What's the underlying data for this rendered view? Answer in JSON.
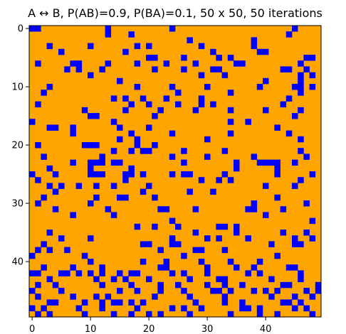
{
  "chart_data": {
    "type": "heatmap",
    "title": "A ↔ B, P(AB)=0.9, P(BA)=0.1, 50 x 50, 50 iterations",
    "xlabel": "",
    "ylabel": "",
    "grid_size": [
      50,
      50
    ],
    "xlim": [
      -0.5,
      49.5
    ],
    "ylim": [
      49.5,
      -0.5
    ],
    "x_ticks": [
      0,
      10,
      20,
      30,
      40
    ],
    "y_ticks": [
      0,
      10,
      20,
      30,
      40
    ],
    "grid": false,
    "legend": "none",
    "colors": {
      "A": "#ffa500",
      "B": "#0000ff"
    },
    "background_state": "A",
    "b_cells": [
      [
        0,
        0
      ],
      [
        0,
        1
      ],
      [
        0,
        13
      ],
      [
        0,
        24
      ],
      [
        0,
        45
      ],
      [
        1,
        13
      ],
      [
        1,
        17
      ],
      [
        1,
        44
      ],
      [
        2,
        27
      ],
      [
        2,
        38
      ],
      [
        3,
        3
      ],
      [
        3,
        10
      ],
      [
        3,
        18
      ],
      [
        3,
        20
      ],
      [
        3,
        29
      ],
      [
        3,
        38
      ],
      [
        4,
        5
      ],
      [
        4,
        16
      ],
      [
        4,
        31
      ],
      [
        4,
        39
      ],
      [
        4,
        40
      ],
      [
        5,
        20
      ],
      [
        5,
        21
      ],
      [
        5,
        26
      ],
      [
        5,
        32
      ],
      [
        5,
        34
      ],
      [
        5,
        47
      ],
      [
        5,
        48
      ],
      [
        6,
        1
      ],
      [
        6,
        7
      ],
      [
        6,
        8
      ],
      [
        6,
        13
      ],
      [
        6,
        18
      ],
      [
        6,
        23
      ],
      [
        6,
        28
      ],
      [
        6,
        35
      ],
      [
        6,
        36
      ],
      [
        6,
        46
      ],
      [
        7,
        6
      ],
      [
        7,
        8
      ],
      [
        7,
        12
      ],
      [
        7,
        21
      ],
      [
        7,
        26
      ],
      [
        7,
        31
      ],
      [
        7,
        32
      ],
      [
        7,
        43
      ],
      [
        7,
        44
      ],
      [
        7,
        47
      ],
      [
        8,
        10
      ],
      [
        8,
        29
      ],
      [
        8,
        33
      ],
      [
        8,
        46
      ],
      [
        8,
        48
      ],
      [
        9,
        15
      ],
      [
        9,
        40
      ],
      [
        9,
        46
      ],
      [
        10,
        3
      ],
      [
        10,
        18
      ],
      [
        10,
        24
      ],
      [
        10,
        30
      ],
      [
        10,
        39
      ],
      [
        10,
        45
      ],
      [
        10,
        46
      ],
      [
        10,
        48
      ],
      [
        11,
        2
      ],
      [
        11,
        25
      ],
      [
        11,
        34
      ],
      [
        11,
        46
      ],
      [
        12,
        14
      ],
      [
        12,
        16
      ],
      [
        12,
        19
      ],
      [
        12,
        23
      ],
      [
        12,
        29
      ],
      [
        12,
        44
      ],
      [
        13,
        1
      ],
      [
        13,
        17
      ],
      [
        13,
        20
      ],
      [
        13,
        25
      ],
      [
        13,
        29
      ],
      [
        13,
        31
      ],
      [
        13,
        43
      ],
      [
        14,
        9
      ],
      [
        14,
        16
      ],
      [
        14,
        22
      ],
      [
        14,
        28
      ],
      [
        14,
        34
      ],
      [
        14,
        40
      ],
      [
        14,
        46
      ],
      [
        15,
        10
      ],
      [
        15,
        11
      ],
      [
        15,
        21
      ],
      [
        15,
        45
      ],
      [
        16,
        0
      ],
      [
        16,
        14
      ],
      [
        16,
        34
      ],
      [
        16,
        37
      ],
      [
        17,
        3
      ],
      [
        17,
        4
      ],
      [
        17,
        7
      ],
      [
        17,
        15
      ],
      [
        17,
        20
      ],
      [
        17,
        42
      ],
      [
        18,
        7
      ],
      [
        18,
        17
      ],
      [
        18,
        24
      ],
      [
        18,
        34
      ],
      [
        18,
        44
      ],
      [
        19,
        15
      ],
      [
        19,
        18
      ],
      [
        19,
        30
      ],
      [
        19,
        46
      ],
      [
        20,
        1
      ],
      [
        20,
        9
      ],
      [
        20,
        10
      ],
      [
        20,
        11
      ],
      [
        20,
        18
      ],
      [
        20,
        21
      ],
      [
        21,
        14
      ],
      [
        21,
        17
      ],
      [
        21,
        19
      ],
      [
        21,
        20
      ],
      [
        21,
        26
      ],
      [
        21,
        33
      ],
      [
        21,
        46
      ],
      [
        22,
        2
      ],
      [
        22,
        12
      ],
      [
        22,
        24
      ],
      [
        22,
        30
      ],
      [
        22,
        38
      ],
      [
        22,
        47
      ],
      [
        23,
        7
      ],
      [
        23,
        10
      ],
      [
        23,
        11
      ],
      [
        23,
        12
      ],
      [
        23,
        14
      ],
      [
        23,
        15
      ],
      [
        23,
        26
      ],
      [
        23,
        35
      ],
      [
        23,
        39
      ],
      [
        23,
        40
      ],
      [
        23,
        41
      ],
      [
        23,
        42
      ],
      [
        23,
        45
      ],
      [
        24,
        3
      ],
      [
        24,
        10
      ],
      [
        24,
        17
      ],
      [
        24,
        35
      ],
      [
        24,
        42
      ],
      [
        25,
        0
      ],
      [
        25,
        4
      ],
      [
        25,
        10
      ],
      [
        25,
        11
      ],
      [
        25,
        12
      ],
      [
        25,
        16
      ],
      [
        25,
        17
      ],
      [
        25,
        19
      ],
      [
        25,
        24
      ],
      [
        25,
        26
      ],
      [
        25,
        27
      ],
      [
        25,
        33
      ],
      [
        25,
        42
      ],
      [
        25,
        48
      ],
      [
        26,
        1
      ],
      [
        26,
        16
      ],
      [
        26,
        29
      ],
      [
        26,
        32
      ],
      [
        26,
        34
      ],
      [
        26,
        46
      ],
      [
        27,
        3
      ],
      [
        27,
        5
      ],
      [
        27,
        8
      ],
      [
        27,
        11
      ],
      [
        27,
        14
      ],
      [
        27,
        20
      ],
      [
        27,
        40
      ],
      [
        27,
        45
      ],
      [
        28,
        4
      ],
      [
        28,
        19
      ],
      [
        28,
        27
      ],
      [
        28,
        31
      ],
      [
        29,
        2
      ],
      [
        29,
        11
      ],
      [
        29,
        15
      ],
      [
        29,
        16
      ],
      [
        29,
        21
      ],
      [
        29,
        42
      ],
      [
        30,
        1
      ],
      [
        30,
        10
      ],
      [
        30,
        38
      ],
      [
        30,
        47
      ],
      [
        31,
        4
      ],
      [
        31,
        13
      ],
      [
        31,
        22
      ],
      [
        31,
        23
      ],
      [
        31,
        28
      ],
      [
        31,
        37
      ],
      [
        31,
        38
      ],
      [
        31,
        43
      ],
      [
        32,
        7
      ],
      [
        32,
        14
      ],
      [
        32,
        40
      ],
      [
        33,
        24
      ],
      [
        33,
        48
      ],
      [
        34,
        18
      ],
      [
        34,
        21
      ],
      [
        34,
        25
      ],
      [
        34,
        32
      ],
      [
        34,
        33
      ],
      [
        34,
        35
      ],
      [
        35,
        3
      ],
      [
        35,
        28
      ],
      [
        35,
        35
      ],
      [
        35,
        43
      ],
      [
        35,
        47
      ],
      [
        36,
        5
      ],
      [
        36,
        10
      ],
      [
        36,
        24
      ],
      [
        36,
        30
      ],
      [
        36,
        32
      ],
      [
        36,
        37
      ],
      [
        36,
        45
      ],
      [
        36,
        48
      ],
      [
        37,
        2
      ],
      [
        37,
        19
      ],
      [
        37,
        20
      ],
      [
        37,
        24
      ],
      [
        37,
        25
      ],
      [
        37,
        41
      ],
      [
        37,
        45
      ],
      [
        37,
        46
      ],
      [
        38,
        1
      ],
      [
        38,
        3
      ],
      [
        38,
        6
      ],
      [
        38,
        22
      ],
      [
        38,
        28
      ],
      [
        38,
        29
      ],
      [
        38,
        33
      ],
      [
        39,
        0
      ],
      [
        39,
        9
      ],
      [
        39,
        26
      ],
      [
        39,
        42
      ],
      [
        40,
        10
      ],
      [
        40,
        19
      ],
      [
        40,
        23
      ],
      [
        40,
        29
      ],
      [
        40,
        34
      ],
      [
        40,
        39
      ],
      [
        41,
        2
      ],
      [
        41,
        7
      ],
      [
        41,
        12
      ],
      [
        41,
        22
      ],
      [
        41,
        23
      ],
      [
        41,
        30
      ],
      [
        41,
        35
      ],
      [
        41,
        38
      ],
      [
        41,
        44
      ],
      [
        41,
        45
      ],
      [
        42,
        0
      ],
      [
        42,
        1
      ],
      [
        42,
        5
      ],
      [
        42,
        6
      ],
      [
        42,
        8
      ],
      [
        42,
        10
      ],
      [
        42,
        12
      ],
      [
        42,
        15
      ],
      [
        42,
        17
      ],
      [
        42,
        18
      ],
      [
        42,
        24
      ],
      [
        42,
        26
      ],
      [
        42,
        30
      ],
      [
        42,
        37
      ],
      [
        42,
        39
      ],
      [
        42,
        46
      ],
      [
        43,
        3
      ],
      [
        43,
        11
      ],
      [
        43,
        14
      ],
      [
        43,
        16
      ],
      [
        43,
        20
      ],
      [
        43,
        27
      ],
      [
        43,
        32
      ],
      [
        43,
        33
      ],
      [
        43,
        41
      ],
      [
        43,
        46
      ],
      [
        44,
        1
      ],
      [
        44,
        4
      ],
      [
        44,
        12
      ],
      [
        44,
        17
      ],
      [
        44,
        22
      ],
      [
        44,
        25
      ],
      [
        44,
        30
      ],
      [
        44,
        33
      ],
      [
        44,
        36
      ],
      [
        44,
        43
      ],
      [
        44,
        44
      ],
      [
        44,
        49
      ],
      [
        45,
        0
      ],
      [
        45,
        5
      ],
      [
        45,
        15
      ],
      [
        45,
        18
      ],
      [
        45,
        22
      ],
      [
        45,
        26
      ],
      [
        45,
        31
      ],
      [
        45,
        32
      ],
      [
        45,
        34
      ],
      [
        45,
        38
      ],
      [
        45,
        40
      ],
      [
        45,
        42
      ],
      [
        45,
        47
      ],
      [
        45,
        49
      ],
      [
        46,
        1
      ],
      [
        46,
        7
      ],
      [
        46,
        11
      ],
      [
        46,
        13
      ],
      [
        46,
        21
      ],
      [
        46,
        27
      ],
      [
        46,
        33
      ],
      [
        46,
        41
      ],
      [
        46,
        45
      ],
      [
        46,
        48
      ],
      [
        47,
        3
      ],
      [
        47,
        4
      ],
      [
        47,
        9
      ],
      [
        47,
        12
      ],
      [
        47,
        14
      ],
      [
        47,
        15
      ],
      [
        47,
        17
      ],
      [
        47,
        19
      ],
      [
        47,
        28
      ],
      [
        47,
        33
      ],
      [
        47,
        36
      ],
      [
        47,
        43
      ],
      [
        47,
        44
      ],
      [
        47,
        46
      ],
      [
        48,
        0
      ],
      [
        48,
        2
      ],
      [
        48,
        8
      ],
      [
        48,
        12
      ],
      [
        48,
        18
      ],
      [
        48,
        24
      ],
      [
        48,
        26
      ],
      [
        48,
        29
      ],
      [
        48,
        36
      ],
      [
        48,
        37
      ],
      [
        48,
        39
      ],
      [
        48,
        45
      ],
      [
        48,
        47
      ],
      [
        49,
        1
      ],
      [
        49,
        3
      ],
      [
        49,
        9
      ],
      [
        49,
        14
      ],
      [
        49,
        17
      ],
      [
        49,
        20
      ],
      [
        49,
        22
      ],
      [
        49,
        27
      ],
      [
        49,
        34
      ],
      [
        49,
        39
      ],
      [
        49,
        42
      ],
      [
        49,
        48
      ]
    ]
  }
}
